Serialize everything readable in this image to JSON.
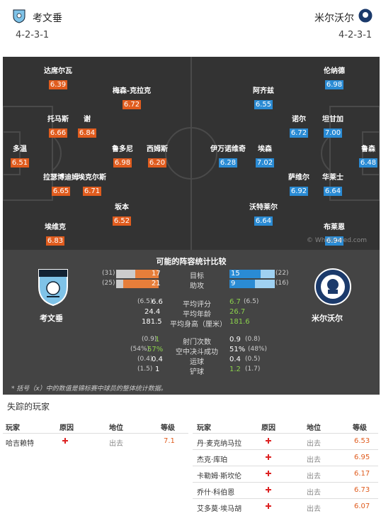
{
  "header": {
    "home": {
      "name": "考文垂",
      "formation": "4-2-3-1"
    },
    "away": {
      "name": "米尔沃尔",
      "formation": "4-2-3-1"
    }
  },
  "pitch": {
    "watermark": "© WhoScored.com",
    "home_players": [
      {
        "name": "达席尔瓦",
        "rating": "6.39"
      },
      {
        "name": "梅森-克拉克",
        "rating": "6.72"
      },
      {
        "name": "托马斯",
        "rating": "6.66"
      },
      {
        "name": "谢",
        "rating": "6.84"
      },
      {
        "name": "多温",
        "rating": "6.51"
      },
      {
        "name": "鲁多尼",
        "rating": "6.98"
      },
      {
        "name": "西姆斯",
        "rating": "6.20"
      },
      {
        "name": "拉瑟博迪姆",
        "rating": "6.65"
      },
      {
        "name": "埃克尔斯",
        "rating": "6.71"
      },
      {
        "name": "坂本",
        "rating": "6.52"
      },
      {
        "name": "埃维克",
        "rating": "6.83"
      }
    ],
    "away_players": [
      {
        "name": "伦纳德",
        "rating": "6.98"
      },
      {
        "name": "阿齐兹",
        "rating": "6.55"
      },
      {
        "name": "诺尔",
        "rating": "6.72"
      },
      {
        "name": "坦甘加",
        "rating": "7.00"
      },
      {
        "name": "伊万诺维奇",
        "rating": "6.28"
      },
      {
        "name": "埃森",
        "rating": "7.02"
      },
      {
        "name": "鲁森",
        "rating": "6.48"
      },
      {
        "name": "萨维尔",
        "rating": "6.92"
      },
      {
        "name": "华莱士",
        "rating": "6.64"
      },
      {
        "name": "沃特莱尔",
        "rating": "6.64"
      },
      {
        "name": "布莱恩",
        "rating": "6.94"
      }
    ]
  },
  "compare": {
    "title": "可能的阵容统计比较",
    "home_name": "考文垂",
    "away_name": "米尔沃尔",
    "bars": [
      {
        "label": "目标",
        "home_total": "(31)",
        "home": "17",
        "away": "15",
        "away_total": "(22)",
        "home_frac": 0.55,
        "away_frac": 0.68
      },
      {
        "label": "助攻",
        "home_total": "(25)",
        "home": "21",
        "away": "9",
        "away_total": "(16)",
        "home_frac": 0.84,
        "away_frac": 0.56
      }
    ],
    "stats": [
      {
        "label": "平均评分",
        "home_total": "(6.5)",
        "home": "6.6",
        "away": "6.7",
        "away_total": "(6.5)",
        "away_green": true
      },
      {
        "label": "平均年龄",
        "home_total": "",
        "home": "24.4",
        "away": "26.7",
        "away_total": "",
        "away_green": true
      },
      {
        "label": "平均身高（厘米）",
        "home_total": "",
        "home": "181.5",
        "away": "181.6",
        "away_total": "",
        "away_green": true
      }
    ],
    "stats2": [
      {
        "label": "射门次数",
        "home_total": "(0.9)",
        "home": "1",
        "away": "0.9",
        "away_total": "(0.8)",
        "home_green": true
      },
      {
        "label": "空中决斗成功",
        "home_total": "(54%)",
        "home": "57%",
        "away": "51%",
        "away_total": "(48%)",
        "home_green": true
      },
      {
        "label": "运球",
        "home_total": "(0.4)",
        "home": "0.4",
        "away": "0.4",
        "away_total": "(0.5)"
      },
      {
        "label": "铲球",
        "home_total": "(1.5)",
        "home": "1",
        "away": "1.2",
        "away_total": "(1.7)",
        "away_green": true
      }
    ],
    "note": "* 括号（x）中的数值是锦标赛中球员的整体统计数据。"
  },
  "missing": {
    "title": "失踪的玩家",
    "headers": {
      "player": "玩家",
      "reason": "原因",
      "status": "地位",
      "rating": "等级"
    },
    "home": [
      {
        "player": "哈吉赖特",
        "status": "出去",
        "rating": "7.1"
      }
    ],
    "away": [
      {
        "player": "丹·麦克纳马拉",
        "status": "出去",
        "rating": "6.53"
      },
      {
        "player": "杰克·库珀",
        "status": "出去",
        "rating": "6.95"
      },
      {
        "player": "卡勒姆·斯坎伦",
        "status": "出去",
        "rating": "6.17"
      },
      {
        "player": "乔什·科伯恩",
        "status": "出去",
        "rating": "6.73"
      },
      {
        "player": "艾多莫·埃马胡",
        "status": "出去",
        "rating": "6.07"
      }
    ]
  },
  "colors": {
    "home_accent": "#e05c1e",
    "away_accent": "#2a8bd4",
    "pitch": "#333333",
    "panel": "#444444"
  }
}
